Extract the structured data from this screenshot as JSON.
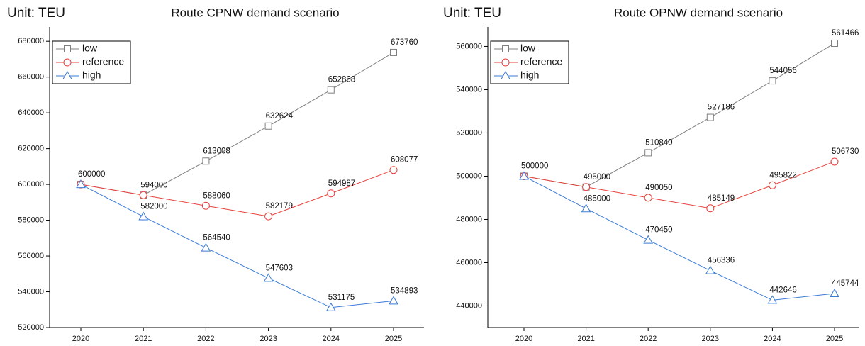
{
  "chart_data": [
    {
      "type": "line",
      "title": "Route CPNW demand scenario",
      "unit_label": "Unit: TEU",
      "categories": [
        "2020",
        "2021",
        "2022",
        "2023",
        "2024",
        "2025"
      ],
      "series": [
        {
          "name": "low",
          "color": "#808080",
          "marker": "square",
          "values": [
            600000,
            594000,
            613008,
            632624,
            652868,
            673760
          ]
        },
        {
          "name": "reference",
          "color": "#e8413c",
          "marker": "circle",
          "values": [
            600000,
            594000,
            588060,
            582179,
            594987,
            608077
          ]
        },
        {
          "name": "high",
          "color": "#3a7bd5",
          "marker": "triangle",
          "values": [
            600000,
            582000,
            564540,
            547603,
            531175,
            534893
          ]
        }
      ],
      "ylim": [
        520000,
        688000
      ],
      "yticks": [
        520000,
        540000,
        560000,
        580000,
        600000,
        620000,
        640000,
        660000,
        680000
      ],
      "legend": "upper left",
      "grid": false
    },
    {
      "type": "line",
      "title": "Route OPNW demand scenario",
      "unit_label": "Unit: TEU",
      "categories": [
        "2020",
        "2021",
        "2022",
        "2023",
        "2024",
        "2025"
      ],
      "series": [
        {
          "name": "low",
          "color": "#808080",
          "marker": "square",
          "values": [
            500000,
            495000,
            510840,
            527186,
            544056,
            561466
          ]
        },
        {
          "name": "reference",
          "color": "#e8413c",
          "marker": "circle",
          "values": [
            500000,
            495000,
            490050,
            485149,
            495822,
            506730
          ]
        },
        {
          "name": "high",
          "color": "#3a7bd5",
          "marker": "triangle",
          "values": [
            500000,
            485000,
            470450,
            456336,
            442646,
            445744
          ]
        }
      ],
      "ylim": [
        430000,
        569000
      ],
      "yticks": [
        440000,
        460000,
        480000,
        500000,
        520000,
        540000,
        560000
      ],
      "legend": "upper left",
      "grid": false
    }
  ]
}
